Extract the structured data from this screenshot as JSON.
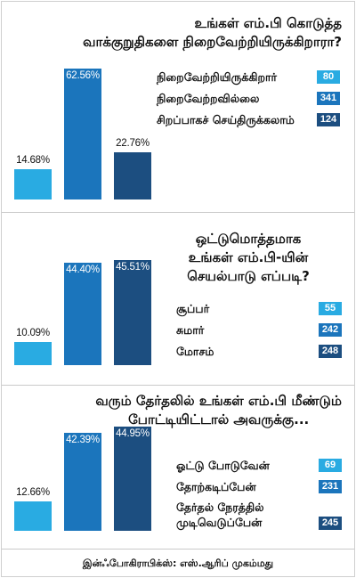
{
  "colors": {
    "light": "#29abe2",
    "mid": "#1b75bc",
    "dark": "#1c4e80"
  },
  "chart_data": [
    {
      "type": "bar",
      "title": "உங்கள் எம்.பி கொடுத்த வாக்குறுதிகளை நிறைவேற்றியிருக்கிறாரா?",
      "title_lines": [
        "உங்கள் எம்.பி கொடுத்த",
        "வாக்குறுதிகளை நிறைவேற்றியிருக்கிறாரா?"
      ],
      "categories": [
        "நிறைவேற்றியிருக்கிறார்",
        "நிறைவேற்றவில்லை",
        "சிறப்பாகச் செய்திருக்கலாம்"
      ],
      "values": [
        14.68,
        62.56,
        22.76
      ],
      "value_labels": [
        "14.68%",
        "62.56%",
        "22.76%"
      ],
      "counts": [
        80,
        341,
        124
      ],
      "count_labels": [
        "80",
        "341",
        "124"
      ],
      "legend": [
        {
          "label": "நிறைவேற்றியிருக்கிறார்",
          "count": "80"
        },
        {
          "label": "நிறைவேற்றவில்லை",
          "count": "341"
        },
        {
          "label": "சிறப்பாகச் செய்திருக்கலாம்",
          "count": "124"
        }
      ],
      "legend_position": "right",
      "grid": false
    },
    {
      "type": "bar",
      "title": "ஒட்டுமொத்தமாக உங்கள் எம்.பி-யின் செயல்பாடு எப்படி?",
      "title_lines": [
        "ஒட்டுமொத்தமாக",
        "உங்கள் எம்.பி-யின்",
        "செயல்பாடு எப்படி?"
      ],
      "categories": [
        "சூப்பர்",
        "சுமார்",
        "மோசம்"
      ],
      "values": [
        10.09,
        44.4,
        45.51
      ],
      "value_labels": [
        "10.09%",
        "44.40%",
        "45.51%"
      ],
      "counts": [
        55,
        242,
        248
      ],
      "legend": [
        {
          "label": "சூப்பர்",
          "count": "55"
        },
        {
          "label": "சுமார்",
          "count": "242"
        },
        {
          "label": "மோசம்",
          "count": "248"
        }
      ],
      "legend_position": "right",
      "grid": false
    },
    {
      "type": "bar",
      "title": "வரும் தேர்தலில் உங்கள் எம்.பி மீண்டும் போட்டியிட்டால் அவருக்கு...",
      "title_lines": [
        "வரும் தேர்தலில் உங்கள் எம்.பி மீண்டும்",
        "போட்டியிட்டால் அவருக்கு..."
      ],
      "categories": [
        "ஓட்டு போடுவேன்",
        "தோற்கடிப்பேன்",
        "தேர்தல் நேரத்தில் முடிவெடுப்பேன்"
      ],
      "values": [
        12.66,
        42.39,
        44.95
      ],
      "value_labels": [
        "12.66%",
        "42.39%",
        "44.95%"
      ],
      "counts": [
        69,
        231,
        245
      ],
      "legend": [
        {
          "label": "ஓட்டு போடுவேன்",
          "label_lines": [
            "ஓட்டு போடுவேன்"
          ],
          "count": "69"
        },
        {
          "label": "தோற்கடிப்பேன்",
          "label_lines": [
            "தோற்கடிப்பேன்"
          ],
          "count": "231"
        },
        {
          "label": "தேர்தல் நேரத்தில் முடிவெடுப்பேன்",
          "label_lines": [
            "தேர்தல் நேரத்தில்",
            "முடிவெடுப்பேன்"
          ],
          "count": "245"
        }
      ],
      "legend_position": "right",
      "grid": false
    }
  ],
  "footer": {
    "credit": "இன்ஃபோகிராபிக்ஸ்: எஸ்.ஆரிப் முகம்மது"
  }
}
